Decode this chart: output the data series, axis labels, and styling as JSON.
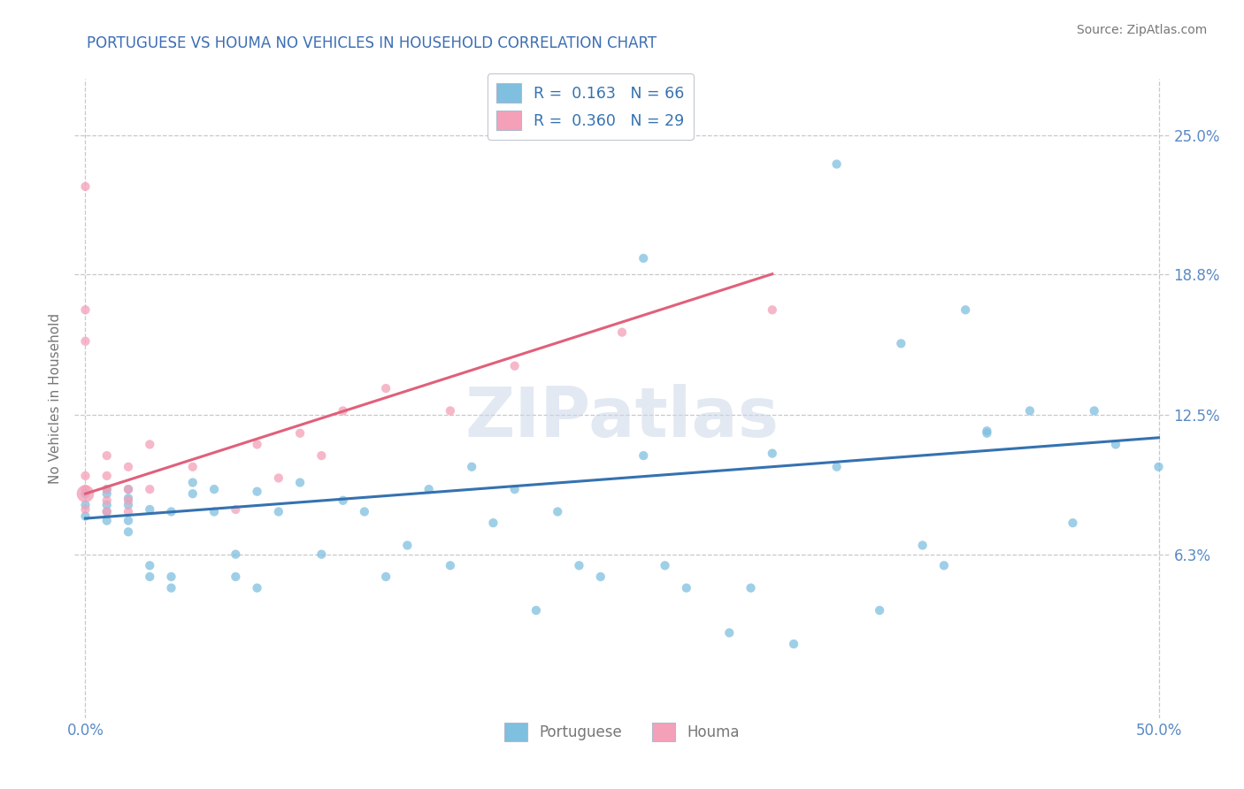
{
  "title": "PORTUGUESE VS HOUMA NO VEHICLES IN HOUSEHOLD CORRELATION CHART",
  "source": "Source: ZipAtlas.com",
  "ylabel": "No Vehicles in Household",
  "watermark": "ZIPatlas",
  "xlim": [
    -0.005,
    0.505
  ],
  "ylim": [
    -0.01,
    0.275
  ],
  "xtick_labels": [
    "0.0%",
    "50.0%"
  ],
  "xtick_values": [
    0.0,
    0.5
  ],
  "ytick_labels": [
    "6.3%",
    "12.5%",
    "18.8%",
    "25.0%"
  ],
  "ytick_values": [
    0.063,
    0.125,
    0.188,
    0.25
  ],
  "grid_yticks": [
    0.063,
    0.125,
    0.188,
    0.25
  ],
  "grid_xticks": [
    0.0,
    0.5
  ],
  "blue_color": "#7fbfdf",
  "pink_color": "#f4a0b8",
  "blue_line_color": "#3572b0",
  "pink_line_color": "#e0607a",
  "blue_trend_x": [
    0.0,
    0.5
  ],
  "blue_trend_y": [
    0.079,
    0.115
  ],
  "pink_trend_x": [
    0.0,
    0.32
  ],
  "pink_trend_y": [
    0.09,
    0.188
  ],
  "portuguese_x": [
    0.0,
    0.0,
    0.0,
    0.01,
    0.01,
    0.01,
    0.01,
    0.01,
    0.02,
    0.02,
    0.02,
    0.02,
    0.02,
    0.03,
    0.03,
    0.03,
    0.04,
    0.04,
    0.04,
    0.05,
    0.05,
    0.06,
    0.06,
    0.07,
    0.07,
    0.08,
    0.08,
    0.09,
    0.1,
    0.11,
    0.12,
    0.13,
    0.14,
    0.15,
    0.16,
    0.17,
    0.18,
    0.19,
    0.2,
    0.21,
    0.22,
    0.23,
    0.24,
    0.26,
    0.27,
    0.28,
    0.3,
    0.31,
    0.33,
    0.35,
    0.37,
    0.39,
    0.4,
    0.42,
    0.44,
    0.46,
    0.48,
    0.5,
    0.26,
    0.32,
    0.38,
    0.42,
    0.47,
    0.41,
    0.35
  ],
  "portuguese_y": [
    0.09,
    0.085,
    0.08,
    0.09,
    0.085,
    0.082,
    0.078,
    0.092,
    0.088,
    0.085,
    0.092,
    0.078,
    0.073,
    0.083,
    0.058,
    0.053,
    0.082,
    0.053,
    0.048,
    0.095,
    0.09,
    0.082,
    0.092,
    0.063,
    0.053,
    0.091,
    0.048,
    0.082,
    0.095,
    0.063,
    0.087,
    0.082,
    0.053,
    0.067,
    0.092,
    0.058,
    0.102,
    0.077,
    0.092,
    0.038,
    0.082,
    0.058,
    0.053,
    0.107,
    0.058,
    0.048,
    0.028,
    0.048,
    0.023,
    0.102,
    0.038,
    0.067,
    0.058,
    0.118,
    0.127,
    0.077,
    0.112,
    0.102,
    0.195,
    0.108,
    0.157,
    0.117,
    0.127,
    0.172,
    0.237
  ],
  "houma_x": [
    0.0,
    0.0,
    0.0,
    0.0,
    0.0,
    0.0,
    0.01,
    0.01,
    0.01,
    0.01,
    0.01,
    0.02,
    0.02,
    0.02,
    0.02,
    0.03,
    0.03,
    0.05,
    0.07,
    0.08,
    0.09,
    0.1,
    0.11,
    0.12,
    0.14,
    0.17,
    0.2,
    0.25,
    0.32
  ],
  "houma_y": [
    0.172,
    0.227,
    0.158,
    0.098,
    0.092,
    0.083,
    0.107,
    0.098,
    0.092,
    0.087,
    0.082,
    0.102,
    0.092,
    0.087,
    0.082,
    0.112,
    0.092,
    0.102,
    0.083,
    0.112,
    0.097,
    0.117,
    0.107,
    0.127,
    0.137,
    0.127,
    0.147,
    0.162,
    0.172
  ],
  "houma_big_x": [
    0.0
  ],
  "houma_big_y": [
    0.09
  ],
  "houma_big_size": 200,
  "scatter_size_blue": 55,
  "scatter_size_pink": 55,
  "scatter_alpha": 0.75,
  "bg_color": "#ffffff",
  "grid_color": "#c8c8c8",
  "title_color": "#3c6eb4",
  "tick_label_color": "#5a8ac6",
  "axis_label_color": "#777777",
  "source_color": "#777777",
  "watermark_color": "#ccd8e8",
  "watermark_alpha": 0.55,
  "watermark_fontsize": 56
}
